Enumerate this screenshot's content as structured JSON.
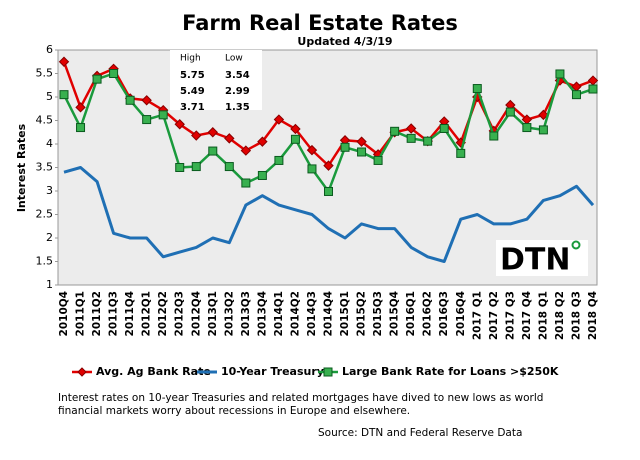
{
  "chart_data": {
    "type": "line",
    "title": "Farm Real Estate Rates",
    "subtitle": "Updated 4/3/19",
    "y_label": "Interest Rates",
    "categories": [
      "2010Q4",
      "2011Q1",
      "2011Q2",
      "2011Q3",
      "2011Q4",
      "2012Q1",
      "2012Q2",
      "2012Q3",
      "2012Q4",
      "2013Q1",
      "2013Q2",
      "2013Q3",
      "2013Q4",
      "2014Q1",
      "2014Q2",
      "2014Q3",
      "2014Q4",
      "2015Q1",
      "2015Q2",
      "2015Q3",
      "2015Q4",
      "2016Q1",
      "2016Q2",
      "2016Q3",
      "2016Q4",
      "2017 Q1",
      "2017 Q2",
      "2017 Q3",
      "2017 Q4",
      "2018 Q1",
      "2018 Q2",
      "2018 Q3",
      "2018 Q4"
    ],
    "series": [
      {
        "name": "Avg. Ag Bank Rate",
        "color": "#e00000",
        "marker": "diamond",
        "values": [
          5.75,
          4.78,
          5.45,
          5.6,
          4.97,
          4.93,
          4.72,
          4.42,
          4.18,
          4.25,
          4.12,
          3.86,
          4.05,
          4.52,
          4.32,
          3.87,
          3.54,
          4.08,
          4.05,
          3.78,
          4.25,
          4.33,
          4.06,
          4.48,
          4.03,
          5.0,
          4.28,
          4.83,
          4.52,
          4.62,
          5.35,
          5.22,
          5.35
        ]
      },
      {
        "name": "10-Year Treasury",
        "color": "#1f6fb4",
        "marker": "none",
        "values": [
          3.4,
          3.5,
          3.2,
          2.1,
          2.0,
          2.0,
          1.6,
          1.7,
          1.8,
          2.0,
          1.9,
          2.7,
          2.9,
          2.7,
          2.6,
          2.5,
          2.2,
          2.0,
          2.3,
          2.2,
          2.2,
          1.8,
          1.6,
          1.5,
          2.4,
          2.5,
          2.3,
          2.3,
          2.4,
          2.8,
          2.9,
          3.1,
          2.7
        ]
      },
      {
        "name": "Large Bank Rate for Loans >$250K",
        "color": "#1a9a3c",
        "marker": "square",
        "values": [
          5.05,
          4.35,
          5.38,
          5.5,
          4.93,
          4.52,
          4.62,
          3.5,
          3.52,
          3.85,
          3.52,
          3.17,
          3.33,
          3.65,
          4.1,
          3.47,
          2.99,
          3.93,
          3.83,
          3.65,
          4.27,
          4.12,
          4.06,
          4.33,
          3.8,
          5.18,
          4.17,
          4.68,
          4.35,
          4.3,
          5.49,
          5.05,
          5.17
        ]
      }
    ],
    "ylim": [
      1,
      6
    ],
    "yticks": [
      1,
      1.5,
      2,
      2.5,
      3,
      3.5,
      4,
      4.5,
      5,
      5.5,
      6
    ],
    "grid": false,
    "stats": {
      "headers": [
        "High",
        "Low"
      ],
      "rows": [
        [
          5.75,
          3.54
        ],
        [
          5.49,
          2.99
        ],
        [
          3.71,
          1.35
        ]
      ]
    },
    "logo": "DTN",
    "note": "Interest rates on 10-year Treasuries and related mortgages have dived to new lows as world financial markets worry about recessions in Europe and elsewhere.",
    "source": "Source: DTN  and Federal Reserve Data"
  }
}
